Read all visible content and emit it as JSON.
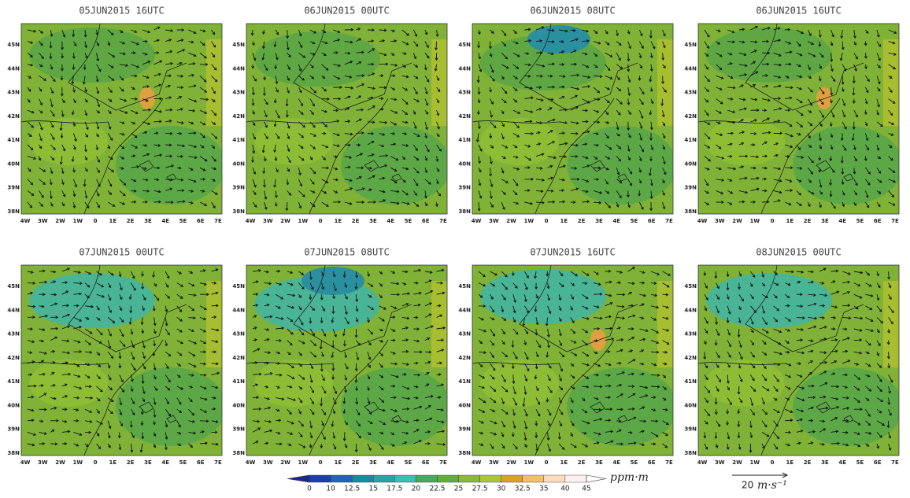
{
  "panels": [
    {
      "title": "05JUN2015 16UTC"
    },
    {
      "title": "06JUN2015 00UTC"
    },
    {
      "title": "06JUN2015 08UTC"
    },
    {
      "title": "06JUN2015 16UTC"
    },
    {
      "title": "07JUN2015 00UTC"
    },
    {
      "title": "07JUN2015 08UTC"
    },
    {
      "title": "07JUN2015 16UTC"
    },
    {
      "title": "08JUN2015 00UTC"
    }
  ],
  "lon_ticks": [
    "4W",
    "3W",
    "2W",
    "1W",
    "0",
    "1E",
    "2E",
    "3E",
    "4E",
    "5E",
    "6E",
    "7E"
  ],
  "lat_ticks": [
    "38N",
    "39N",
    "40N",
    "41N",
    "42N",
    "43N",
    "44N",
    "45N"
  ],
  "colorbar": {
    "levels": [
      0,
      10,
      12.5,
      15,
      17.5,
      20,
      22.5,
      25,
      27.5,
      30,
      32.5,
      35,
      40,
      45
    ],
    "colors": [
      "#1a2a8a",
      "#1f3fa8",
      "#2563b3",
      "#1c8a9a",
      "#22a6a6",
      "#35c2b4",
      "#4aa860",
      "#63ad3e",
      "#8cba32",
      "#aac92f",
      "#d8a520",
      "#f0c070",
      "#fbdcc0",
      "#fff0f0",
      "#ffffff"
    ],
    "unit": "ppm·m"
  },
  "reference_vector": {
    "value": "20",
    "unit": "m·s⁻¹"
  }
}
